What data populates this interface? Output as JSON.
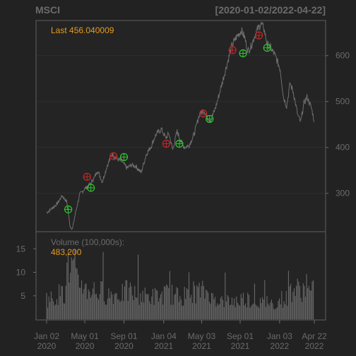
{
  "chart_data": {
    "type": "line",
    "title_left": "MSCI",
    "title_right": "[2020-01-02/2022-04-22]",
    "last_label": "Last 456.040009",
    "price": {
      "ylim": [
        218,
        675
      ],
      "y_ticks": [
        300,
        400,
        500,
        600
      ],
      "x_start": "2020-01-02",
      "x_end": "2022-04-22",
      "series": [
        {
          "x": "2020-01-02",
          "y": 258
        },
        {
          "x": "2020-01-15",
          "y": 265
        },
        {
          "x": "2020-02-05",
          "y": 278
        },
        {
          "x": "2020-02-20",
          "y": 295
        },
        {
          "x": "2020-03-05",
          "y": 282
        },
        {
          "x": "2020-03-16",
          "y": 228
        },
        {
          "x": "2020-03-23",
          "y": 222
        },
        {
          "x": "2020-04-01",
          "y": 255
        },
        {
          "x": "2020-04-15",
          "y": 298
        },
        {
          "x": "2020-05-01",
          "y": 310
        },
        {
          "x": "2020-05-15",
          "y": 318
        },
        {
          "x": "2020-06-01",
          "y": 335
        },
        {
          "x": "2020-06-10",
          "y": 350
        },
        {
          "x": "2020-06-25",
          "y": 325
        },
        {
          "x": "2020-07-10",
          "y": 360
        },
        {
          "x": "2020-07-25",
          "y": 385
        },
        {
          "x": "2020-08-10",
          "y": 375
        },
        {
          "x": "2020-08-25",
          "y": 370
        },
        {
          "x": "2020-09-10",
          "y": 355
        },
        {
          "x": "2020-09-25",
          "y": 362
        },
        {
          "x": "2020-10-10",
          "y": 358
        },
        {
          "x": "2020-10-25",
          "y": 345
        },
        {
          "x": "2020-11-10",
          "y": 385
        },
        {
          "x": "2020-11-25",
          "y": 402
        },
        {
          "x": "2020-12-10",
          "y": 428
        },
        {
          "x": "2020-12-28",
          "y": 440
        },
        {
          "x": "2021-01-10",
          "y": 420
        },
        {
          "x": "2021-01-20",
          "y": 430
        },
        {
          "x": "2021-02-01",
          "y": 395
        },
        {
          "x": "2021-02-15",
          "y": 435
        },
        {
          "x": "2021-03-01",
          "y": 410
        },
        {
          "x": "2021-03-10",
          "y": 400
        },
        {
          "x": "2021-03-25",
          "y": 405
        },
        {
          "x": "2021-04-10",
          "y": 430
        },
        {
          "x": "2021-04-25",
          "y": 470
        },
        {
          "x": "2021-05-10",
          "y": 482
        },
        {
          "x": "2021-05-20",
          "y": 465
        },
        {
          "x": "2021-06-01",
          "y": 460
        },
        {
          "x": "2021-06-15",
          "y": 485
        },
        {
          "x": "2021-06-25",
          "y": 510
        },
        {
          "x": "2021-07-10",
          "y": 550
        },
        {
          "x": "2021-07-25",
          "y": 590
        },
        {
          "x": "2021-08-05",
          "y": 620
        },
        {
          "x": "2021-08-20",
          "y": 640
        },
        {
          "x": "2021-09-05",
          "y": 655
        },
        {
          "x": "2021-09-15",
          "y": 640
        },
        {
          "x": "2021-09-25",
          "y": 610
        },
        {
          "x": "2021-10-05",
          "y": 620
        },
        {
          "x": "2021-10-20",
          "y": 650
        },
        {
          "x": "2021-11-05",
          "y": 670
        },
        {
          "x": "2021-11-15",
          "y": 658
        },
        {
          "x": "2021-11-25",
          "y": 625
        },
        {
          "x": "2021-12-05",
          "y": 618
        },
        {
          "x": "2021-12-20",
          "y": 600
        },
        {
          "x": "2022-01-05",
          "y": 570
        },
        {
          "x": "2022-01-15",
          "y": 510
        },
        {
          "x": "2022-01-25",
          "y": 490
        },
        {
          "x": "2022-02-05",
          "y": 540
        },
        {
          "x": "2022-02-15",
          "y": 520
        },
        {
          "x": "2022-03-01",
          "y": 470
        },
        {
          "x": "2022-03-10",
          "y": 455
        },
        {
          "x": "2022-03-20",
          "y": 495
        },
        {
          "x": "2022-03-30",
          "y": 510
        },
        {
          "x": "2022-04-08",
          "y": 495
        },
        {
          "x": "2022-04-15",
          "y": 480
        },
        {
          "x": "2022-04-22",
          "y": 456
        }
      ],
      "sell_markers": [
        {
          "x": "2020-05-08",
          "y": 336
        },
        {
          "x": "2020-07-30",
          "y": 381
        },
        {
          "x": "2021-01-12",
          "y": 408
        },
        {
          "x": "2021-05-08",
          "y": 474
        },
        {
          "x": "2021-08-08",
          "y": 612
        },
        {
          "x": "2021-10-30",
          "y": 644
        }
      ],
      "buy_markers": [
        {
          "x": "2020-03-10",
          "y": 265
        },
        {
          "x": "2020-05-20",
          "y": 312
        },
        {
          "x": "2020-09-01",
          "y": 379
        },
        {
          "x": "2021-02-22",
          "y": 408
        },
        {
          "x": "2021-05-28",
          "y": 462
        },
        {
          "x": "2021-09-10",
          "y": 605
        },
        {
          "x": "2021-11-25",
          "y": 617
        }
      ]
    },
    "volume": {
      "label": "Volume (100,000s):",
      "last": "483,200",
      "y_ticks": [
        5,
        10,
        15
      ],
      "ylim": [
        0,
        18.5
      ],
      "monthly_avg": [
        4.5,
        5.5,
        11,
        8,
        6.5,
        6,
        5.5,
        5.5,
        6,
        5.5,
        5,
        5,
        5.5,
        5,
        5,
        6,
        6,
        4.5,
        4,
        4,
        4.5,
        4,
        3.5,
        3.5,
        4.5,
        6.5,
        6.5,
        6,
        5
      ]
    },
    "x_ticks": [
      {
        "date": "2020-01-02",
        "line1": "Jan 02",
        "line2": "2020"
      },
      {
        "date": "2020-05-01",
        "line1": "May 01",
        "line2": "2020"
      },
      {
        "date": "2020-09-01",
        "line1": "Sep 01",
        "line2": "2020"
      },
      {
        "date": "2021-01-04",
        "line1": "Jan 04",
        "line2": "2021"
      },
      {
        "date": "2021-05-03",
        "line1": "May 03",
        "line2": "2021"
      },
      {
        "date": "2021-09-01",
        "line1": "Sep 01",
        "line2": "2021"
      },
      {
        "date": "2022-01-03",
        "line1": "Jan 03",
        "line2": "2022"
      },
      {
        "date": "2022-04-22",
        "line1": "Apr 22",
        "line2": "2022"
      }
    ]
  }
}
